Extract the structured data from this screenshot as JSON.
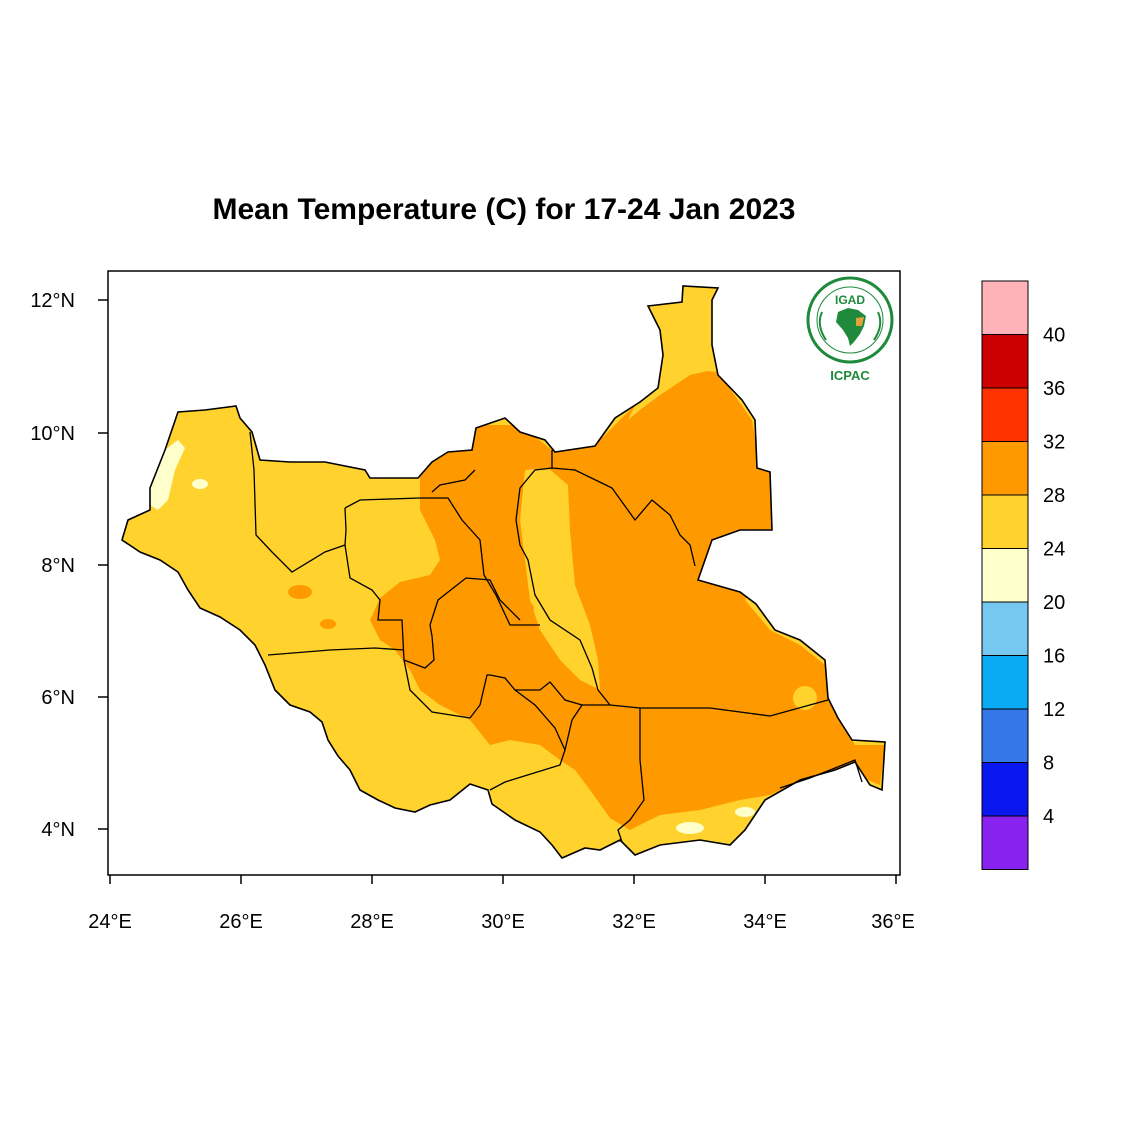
{
  "title": "Mean Temperature (C) for 17-24 Jan 2023",
  "logo": {
    "top_text": "IGAD",
    "bottom_text": "ICPAC",
    "brand_color": "#1f8a3c",
    "accent_color": "#e3a33a"
  },
  "axes": {
    "lon_labels": [
      "24°E",
      "26°E",
      "28°E",
      "30°E",
      "32°E",
      "34°E",
      "36°E"
    ],
    "lat_labels": [
      "12°N",
      "10°N",
      "8°N",
      "6°N",
      "4°N"
    ]
  },
  "colorbar": {
    "labels": [
      "40",
      "36",
      "32",
      "28",
      "24",
      "20",
      "16",
      "12",
      "8",
      "4"
    ],
    "colors": [
      "#ffb3b8",
      "#cc0000",
      "#ff3300",
      "#ff9900",
      "#ffd22e",
      "#ffffcc",
      "#77c8f0",
      "#0aaaf5",
      "#3377e8",
      "#0a18f0",
      "#8822ee"
    ]
  },
  "chart_data": {
    "type": "heatmap",
    "title": "Mean Temperature (C) for 17-24 Jan 2023",
    "xlabel": "",
    "ylabel": "",
    "xlim": [
      24,
      36
    ],
    "ylim": [
      3.3,
      12.5
    ],
    "x_ticks": [
      24,
      26,
      28,
      30,
      32,
      34,
      36
    ],
    "y_ticks": [
      4,
      6,
      8,
      10,
      12
    ],
    "legend_levels": [
      4,
      8,
      12,
      16,
      20,
      24,
      28,
      32,
      36,
      40
    ],
    "grid": false,
    "legend_placement": "right",
    "value_ranges_present": [
      {
        "range": "20-24",
        "color": "#ffffcc",
        "areas": [
          "far west",
          "small patches in south"
        ]
      },
      {
        "range": "24-28",
        "color": "#ffd22e",
        "areas": [
          "west",
          "southwest",
          "far north",
          "central strip",
          "south"
        ]
      },
      {
        "range": "28-32",
        "color": "#ff9900",
        "areas": [
          "east",
          "northeast",
          "center",
          "southeast"
        ]
      }
    ]
  }
}
